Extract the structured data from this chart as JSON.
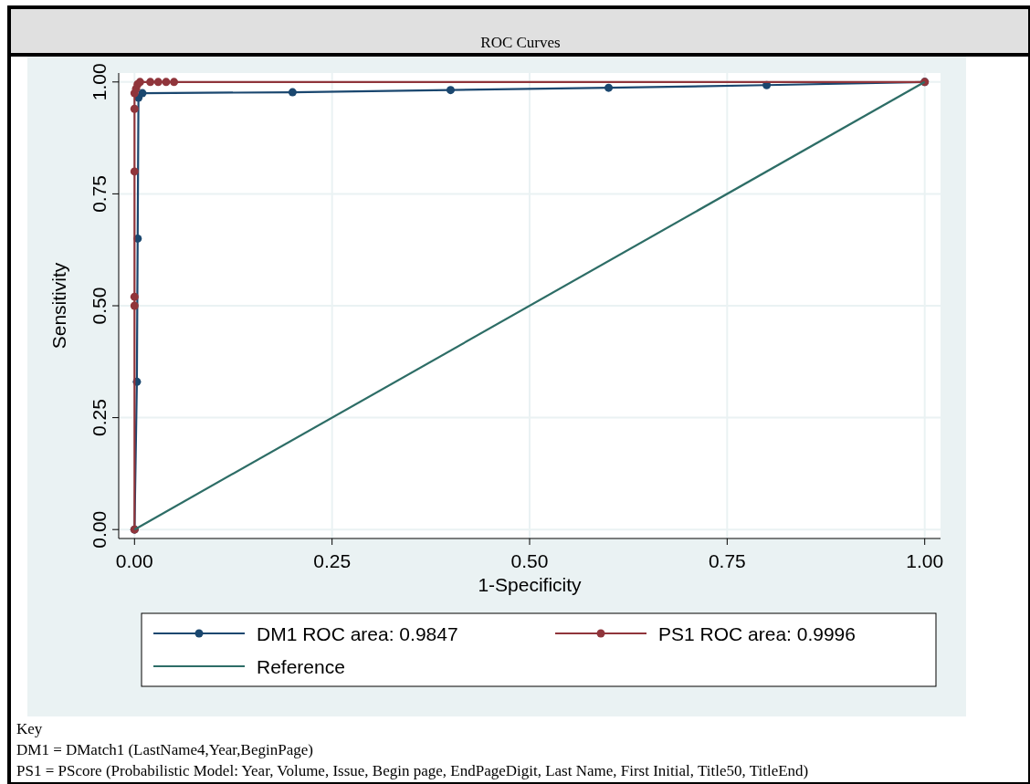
{
  "chart_data": {
    "type": "line",
    "title": "ROC Curves",
    "xlabel": "1-Specificity",
    "ylabel": "Sensitivity",
    "xlim": [
      -0.02,
      1.02
    ],
    "ylim": [
      -0.02,
      1.02
    ],
    "xticks": [
      {
        "value": 0,
        "label": "0.00"
      },
      {
        "value": 0.25,
        "label": "0.25"
      },
      {
        "value": 0.5,
        "label": "0.50"
      },
      {
        "value": 0.75,
        "label": "0.75"
      },
      {
        "value": 1,
        "label": "1.00"
      }
    ],
    "yticks": [
      {
        "value": 0,
        "label": "0.00"
      },
      {
        "value": 0.25,
        "label": "0.25"
      },
      {
        "value": 0.5,
        "label": "0.50"
      },
      {
        "value": 0.75,
        "label": "0.75"
      },
      {
        "value": 1,
        "label": "1.00"
      }
    ],
    "grid": true,
    "legend": "bottom",
    "line_style": "solid",
    "series": [
      {
        "name": "DM1 ROC area: 0.9847",
        "color": "#1a476f",
        "marker": "circle",
        "x": [
          0,
          0.003,
          0.004,
          0.005,
          0.01,
          0.2,
          0.4,
          0.6,
          0.8,
          1
        ],
        "values": [
          0,
          0.33,
          0.65,
          0.965,
          0.975,
          0.977,
          0.982,
          0.987,
          0.993,
          1
        ]
      },
      {
        "name": "PS1 ROC area: 0.9996",
        "color": "#90353b",
        "marker": "circle",
        "x": [
          0,
          0,
          0,
          0,
          0,
          0,
          0.002,
          0.004,
          0.007,
          0.02,
          0.03,
          0.04,
          0.05,
          1
        ],
        "values": [
          0,
          0.5,
          0.52,
          0.8,
          0.94,
          0.975,
          0.985,
          0.995,
          1,
          1,
          1,
          1,
          1,
          1
        ]
      },
      {
        "name": "Reference",
        "color": "#2d6d66",
        "marker": "none",
        "x": [
          0,
          1
        ],
        "values": [
          0,
          1
        ]
      }
    ],
    "annotations": [
      "Key",
      "DM1 = DMatch1 (LastName4,Year,BeginPage)",
      "PS1 = PScore (Probabilistic Model: Year, Volume, Issue, Begin page, EndPageDigit, Last Name, First Initial, Title50, TitleEnd)"
    ]
  }
}
